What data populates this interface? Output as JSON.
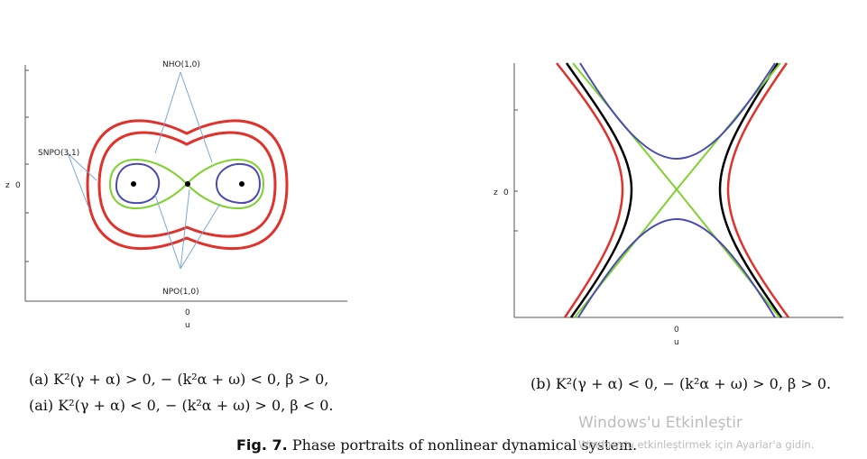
{
  "panel_a": {
    "z_label": "z",
    "z_zero": "0",
    "x_zero": "0",
    "u_label": "u",
    "labels": {
      "nho": "NHO(1,0)",
      "snpo": "SNPO(3,1)",
      "npo": "NPO(1,0)"
    },
    "colors": {
      "outer": "#e0312b",
      "separatrix": "#7fd130",
      "inner": "#4a4ab0",
      "points": "#000000"
    }
  },
  "panel_b": {
    "z_label": "z",
    "z_zero": "0",
    "x_zero": "0",
    "u_label": "u",
    "colors": {
      "red": "#e0312b",
      "black": "#000000",
      "green": "#7fd130",
      "blue": "#4a4ab0"
    }
  },
  "captions": {
    "a": "(a)  K²(γ + α) > 0,  − (k²α + ω) < 0,  β > 0,",
    "ai": "(ai) K²(γ + α) < 0,  − (k²α + ω) > 0,  β < 0.",
    "b": "(b) K²(γ + α) < 0,  − (k²α + ω) > 0,  β > 0."
  },
  "figure_caption": {
    "label": "Fig. 7.",
    "text": "Phase portraits of nonlinear dynamical system."
  },
  "watermark": {
    "title": "Windows'u Etkinleştir",
    "subtitle": "Windows'u etkinleştirmek için Ayarlar'a gidin."
  }
}
